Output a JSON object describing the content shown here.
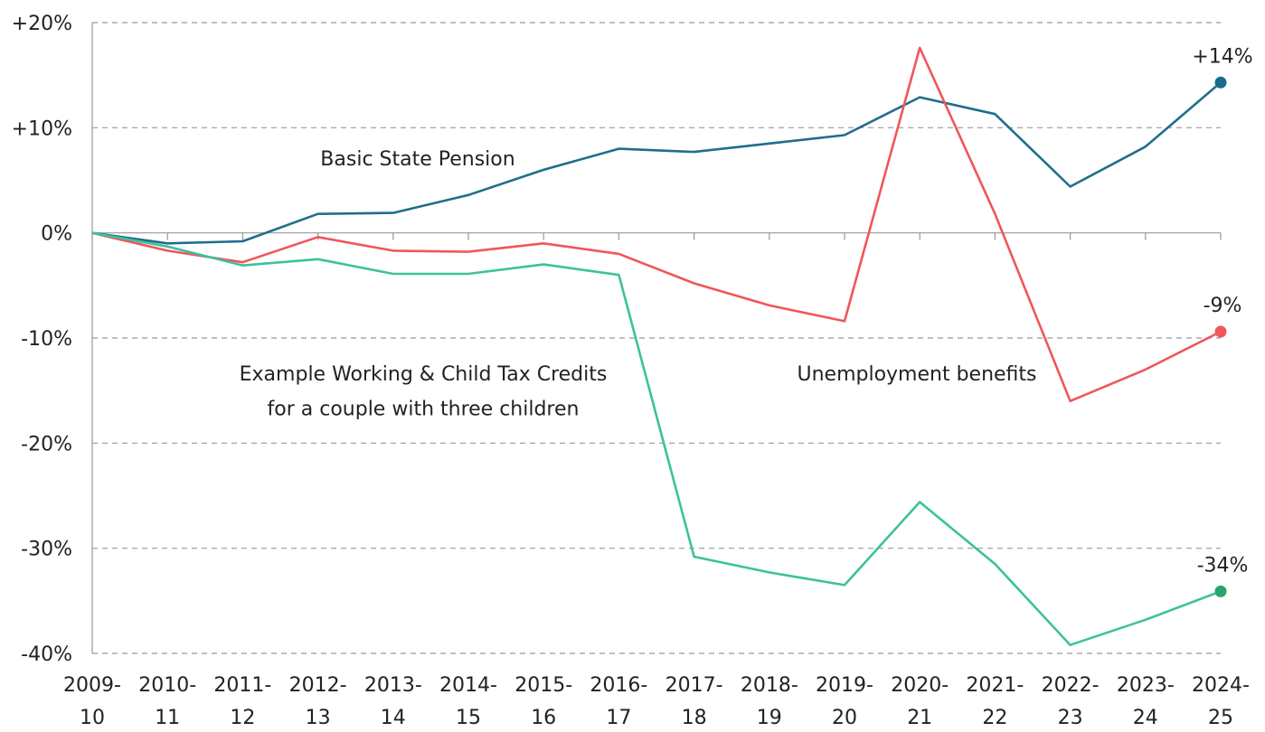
{
  "chart_data": {
    "type": "line",
    "categories": [
      [
        "2009-",
        "10"
      ],
      [
        "2010-",
        "11"
      ],
      [
        "2011-",
        "12"
      ],
      [
        "2012-",
        "13"
      ],
      [
        "2013-",
        "14"
      ],
      [
        "2014-",
        "15"
      ],
      [
        "2015-",
        "16"
      ],
      [
        "2016-",
        "17"
      ],
      [
        "2017-",
        "18"
      ],
      [
        "2018-",
        "19"
      ],
      [
        "2019-",
        "20"
      ],
      [
        "2020-",
        "21"
      ],
      [
        "2021-",
        "22"
      ],
      [
        "2022-",
        "23"
      ],
      [
        "2023-",
        "24"
      ],
      [
        "2024-",
        "25"
      ]
    ],
    "series": [
      {
        "name": "Basic State Pension",
        "color": "#1f6e8c",
        "values": [
          0,
          -1.0,
          -0.8,
          1.8,
          1.9,
          3.6,
          6.0,
          8.0,
          7.7,
          8.5,
          9.3,
          12.9,
          11.3,
          4.4,
          8.2,
          14.3
        ],
        "value_labels": [
          null,
          null,
          null,
          null,
          null,
          null,
          null,
          null,
          null,
          null,
          null,
          null,
          null,
          null,
          null,
          "+14%"
        ]
      },
      {
        "name": "Unemployment benefits",
        "color": "#f0565b",
        "values": [
          0,
          -1.7,
          -2.8,
          -0.4,
          -1.7,
          -1.8,
          -1.0,
          -2.0,
          -4.8,
          -6.9,
          -8.4,
          17.6,
          1.8,
          -16.0,
          -13.0,
          -9.4
        ],
        "value_labels": [
          null,
          null,
          null,
          null,
          null,
          null,
          null,
          null,
          null,
          null,
          null,
          null,
          null,
          null,
          null,
          "-9%"
        ]
      },
      {
        "name": "Example Working & Child Tax Credits\nfor a couple with three children",
        "color": "#3cc29a",
        "values": [
          0,
          -1.3,
          -3.1,
          -2.5,
          -3.9,
          -3.9,
          -3.0,
          -4.0,
          -30.8,
          -32.3,
          -33.5,
          -25.6,
          -31.5,
          -39.2,
          -36.8,
          -34.1
        ],
        "value_labels": [
          null,
          null,
          null,
          null,
          null,
          null,
          null,
          null,
          null,
          null,
          null,
          null,
          null,
          null,
          null,
          "-34%"
        ]
      }
    ],
    "ylim": [
      -40,
      20
    ],
    "yticks": [
      {
        "value": 20,
        "label": "+20%"
      },
      {
        "value": 10,
        "label": "+10%"
      },
      {
        "value": 0,
        "label": "0%"
      },
      {
        "value": -10,
        "label": "-10%"
      },
      {
        "value": -20,
        "label": "-20%"
      },
      {
        "value": -30,
        "label": "-30%"
      },
      {
        "value": -40,
        "label": "-40%"
      }
    ],
    "grid": true
  }
}
